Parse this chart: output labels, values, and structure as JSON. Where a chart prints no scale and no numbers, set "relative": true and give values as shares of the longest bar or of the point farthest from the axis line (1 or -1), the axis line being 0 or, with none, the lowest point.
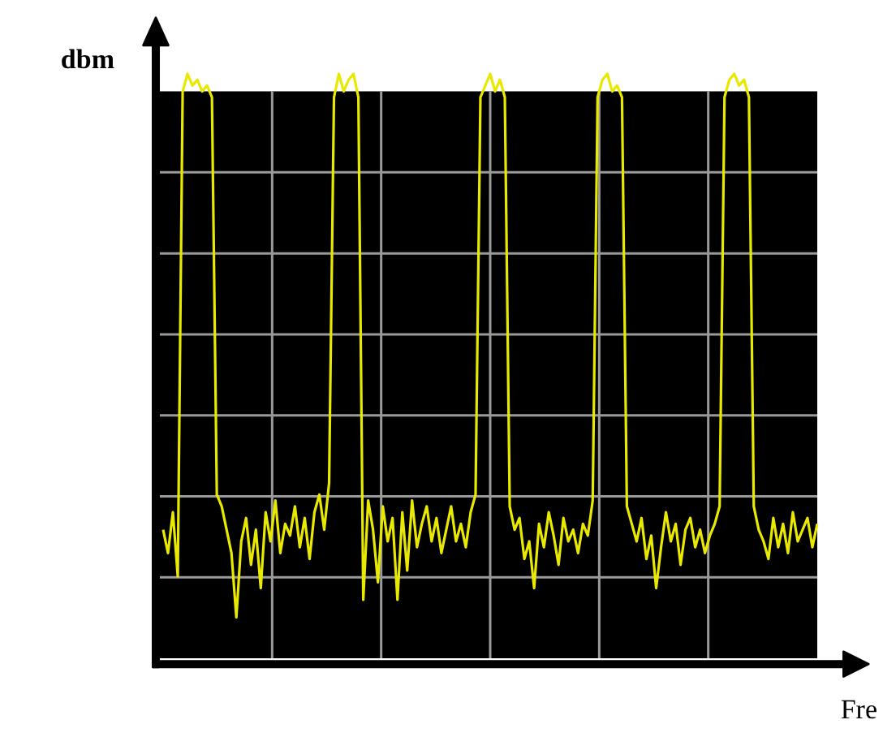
{
  "chart_data": {
    "type": "line",
    "relative": true,
    "xlabel": "Fre",
    "ylabel": "dbm",
    "grid": true,
    "categories": [
      null,
      null,
      null,
      null,
      null,
      null,
      null,
      null,
      null,
      null,
      null,
      null,
      null,
      null,
      null,
      null,
      null,
      null,
      null,
      null,
      null,
      null,
      null,
      null,
      null,
      null,
      null,
      null,
      null,
      null,
      null,
      null,
      null,
      null,
      null,
      null,
      null,
      null,
      null,
      null,
      null,
      null,
      null,
      null,
      null,
      null,
      null,
      null,
      null,
      null,
      null,
      null,
      null,
      null,
      null,
      null,
      null,
      null,
      null,
      null,
      null,
      null,
      null,
      null,
      null,
      null,
      null,
      null,
      null,
      null,
      null,
      null,
      null,
      null,
      null,
      null,
      null,
      null,
      null,
      null,
      null,
      null,
      null,
      null,
      null,
      null,
      null,
      null,
      null,
      null,
      null,
      null,
      null,
      null,
      null,
      null,
      null,
      null,
      null,
      null,
      null,
      null,
      null,
      null,
      null,
      null,
      null,
      null,
      null,
      null,
      null,
      null,
      null,
      null,
      null,
      null,
      null,
      null,
      null,
      null,
      null,
      null,
      null,
      null,
      null,
      null,
      null,
      null,
      null,
      null,
      null,
      null,
      null,
      null,
      null
    ],
    "series": [
      {
        "color": "#e8e800",
        "values": [
          0.22,
          0.18,
          0.25,
          0.14,
          0.97,
          1.0,
          0.98,
          0.99,
          0.97,
          0.98,
          0.96,
          0.28,
          0.26,
          0.22,
          0.18,
          0.07,
          0.2,
          0.24,
          0.16,
          0.22,
          0.12,
          0.25,
          0.2,
          0.27,
          0.18,
          0.23,
          0.21,
          0.26,
          0.19,
          0.24,
          0.17,
          0.25,
          0.28,
          0.22,
          0.3,
          0.96,
          1.0,
          0.97,
          0.99,
          1.0,
          0.96,
          0.1,
          0.27,
          0.22,
          0.13,
          0.26,
          0.2,
          0.24,
          0.1,
          0.25,
          0.15,
          0.27,
          0.19,
          0.23,
          0.26,
          0.2,
          0.24,
          0.18,
          0.22,
          0.26,
          0.2,
          0.23,
          0.19,
          0.25,
          0.28,
          0.96,
          0.98,
          1.0,
          0.97,
          0.99,
          0.96,
          0.26,
          0.22,
          0.24,
          0.17,
          0.2,
          0.12,
          0.23,
          0.19,
          0.25,
          0.21,
          0.16,
          0.24,
          0.2,
          0.22,
          0.18,
          0.23,
          0.21,
          0.27,
          0.96,
          0.99,
          1.0,
          0.97,
          0.98,
          0.96,
          0.26,
          0.23,
          0.2,
          0.24,
          0.17,
          0.21,
          0.12,
          0.19,
          0.25,
          0.2,
          0.23,
          0.16,
          0.22,
          0.24,
          0.19,
          0.22,
          0.18,
          0.21,
          0.23,
          0.26,
          0.96,
          0.99,
          1.0,
          0.98,
          0.99,
          0.96,
          0.26,
          0.22,
          0.2,
          0.17,
          0.24,
          0.19,
          0.23,
          0.18,
          0.25,
          0.2,
          0.22,
          0.24,
          0.19,
          0.23
        ]
      }
    ]
  }
}
